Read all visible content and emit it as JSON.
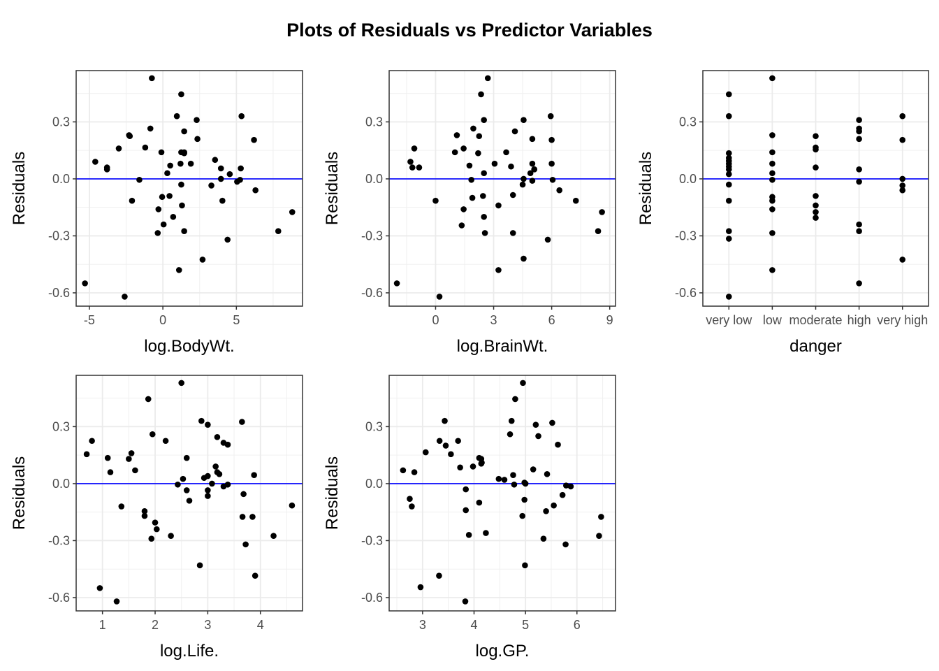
{
  "title": "Plots of Residuals vs Predictor Variables",
  "chart_data": [
    {
      "type": "scatter",
      "xlabel": "log.BodyWt.",
      "ylabel": "Residuals",
      "xlim": [
        -5.9,
        9.5
      ],
      "ylim": [
        -0.67,
        0.57
      ],
      "xticks": [
        -5,
        0,
        5
      ],
      "yticks": [
        -0.6,
        -0.3,
        0.0,
        0.3
      ],
      "ytick_labels": [
        "-0.6",
        "-0.3",
        "0.0",
        "0.3"
      ],
      "reference_line": 0,
      "grid": true,
      "x": [
        -0.75,
        1.25,
        2.3,
        5.35,
        0.95,
        -0.85,
        1.45,
        2.35,
        -2.3,
        -2.25,
        -3.0,
        6.2,
        -1.2,
        -0.1,
        1.25,
        1.45,
        1.2,
        1.45,
        -4.6,
        3.55,
        0.5,
        1.9,
        -3.8,
        -3.8,
        3.95,
        5.3,
        0.3,
        4.55,
        -1.6,
        3.95,
        5.25,
        5.05,
        1.25,
        3.3,
        6.3,
        -0.05,
        0.45,
        -2.1,
        4.05,
        1.3,
        -0.3,
        0.7,
        0.05,
        -0.35,
        1.45,
        7.85,
        8.8,
        4.4,
        2.7,
        1.1,
        -5.3,
        -2.6
      ],
      "y": [
        0.53,
        0.445,
        0.31,
        0.33,
        0.33,
        0.265,
        0.25,
        0.21,
        0.23,
        0.225,
        0.16,
        0.205,
        0.165,
        0.14,
        0.14,
        0.14,
        0.08,
        0.135,
        0.09,
        0.1,
        0.07,
        0.08,
        0.05,
        0.06,
        0.055,
        0.055,
        0.03,
        0.025,
        -0.005,
        0.0,
        -0.005,
        -0.015,
        -0.03,
        -0.035,
        -0.06,
        -0.095,
        -0.09,
        -0.115,
        -0.115,
        -0.14,
        -0.16,
        -0.2,
        -0.24,
        -0.285,
        -0.275,
        -0.275,
        -0.175,
        -0.32,
        -0.425,
        -0.48,
        -0.55,
        -0.62
      ],
      "series_color": "#000000",
      "line_color": "#0000ff"
    },
    {
      "type": "scatter",
      "xlabel": "log.BrainWt.",
      "ylabel": "Residuals",
      "xlim": [
        -2.4,
        9.3
      ],
      "ylim": [
        -0.67,
        0.57
      ],
      "xticks": [
        0,
        3,
        6,
        9
      ],
      "yticks": [
        -0.6,
        -0.3,
        0.0,
        0.3
      ],
      "ytick_labels": [
        "-0.6",
        "-0.3",
        "0.0",
        "0.3"
      ],
      "reference_line": 0,
      "grid": true,
      "x": [
        2.7,
        2.35,
        2.5,
        5.95,
        4.55,
        1.95,
        2.25,
        4.1,
        5.0,
        6.0,
        1.45,
        1.1,
        2.2,
        1.0,
        3.65,
        5.0,
        -1.1,
        -1.3,
        3.9,
        1.75,
        5.1,
        3.05,
        -1.2,
        -0.85,
        6.0,
        5.1,
        2.5,
        4.9,
        4.55,
        1.85,
        5.0,
        6.05,
        4.0,
        4.5,
        6.4,
        0.0,
        1.9,
        2.45,
        3.25,
        7.25,
        8.6,
        1.45,
        2.5,
        2.55,
        4.0,
        8.4,
        5.8,
        1.35,
        4.55,
        3.25,
        -2.0,
        0.2
      ],
      "y": [
        0.53,
        0.445,
        0.31,
        0.33,
        0.31,
        0.265,
        0.225,
        0.25,
        0.21,
        0.205,
        0.16,
        0.23,
        0.135,
        0.14,
        0.14,
        0.08,
        0.16,
        0.09,
        0.065,
        0.07,
        0.05,
        0.08,
        0.06,
        0.06,
        0.08,
        0.05,
        0.03,
        0.03,
        0.0,
        -0.005,
        -0.01,
        -0.005,
        -0.085,
        -0.03,
        -0.06,
        -0.115,
        -0.1,
        -0.09,
        -0.14,
        -0.115,
        -0.175,
        -0.16,
        -0.2,
        -0.285,
        -0.285,
        -0.275,
        -0.32,
        -0.245,
        -0.42,
        -0.48,
        -0.55,
        -0.62
      ],
      "series_color": "#000000",
      "line_color": "#0000ff"
    },
    {
      "type": "scatter",
      "xlabel": "danger",
      "ylabel": "Residuals",
      "categories": [
        "very low",
        "low",
        "moderate",
        "high",
        "very high"
      ],
      "ylim": [
        -0.67,
        0.57
      ],
      "yticks": [
        -0.6,
        -0.3,
        0.0,
        0.3
      ],
      "ytick_labels": [
        "-0.6",
        "-0.3",
        "0.0",
        "0.3"
      ],
      "reference_line": 0,
      "grid": true,
      "points": [
        {
          "category": "very low",
          "values": [
            0.445,
            0.33,
            0.135,
            0.11,
            0.095,
            0.08,
            0.065,
            0.05,
            0.025,
            -0.03,
            -0.115,
            -0.275,
            -0.315,
            -0.62
          ]
        },
        {
          "category": "low",
          "values": [
            0.53,
            0.23,
            0.14,
            0.08,
            0.03,
            -0.005,
            -0.095,
            -0.115,
            -0.16,
            -0.285,
            -0.48
          ]
        },
        {
          "category": "moderate",
          "values": [
            0.225,
            0.165,
            0.155,
            0.06,
            -0.09,
            -0.14,
            -0.175,
            -0.205
          ]
        },
        {
          "category": "high",
          "values": [
            0.31,
            0.265,
            0.25,
            0.21,
            0.05,
            -0.015,
            -0.24,
            -0.275,
            -0.55
          ]
        },
        {
          "category": "very high",
          "values": [
            0.33,
            0.205,
            0.0,
            -0.035,
            -0.06,
            -0.425
          ]
        }
      ],
      "series_color": "#000000",
      "line_color": "#0000ff"
    },
    {
      "type": "scatter",
      "xlabel": "log.Life.",
      "ylabel": "Residuals",
      "xlim": [
        0.5,
        4.8
      ],
      "ylim": [
        -0.67,
        0.57
      ],
      "xticks": [
        1,
        2,
        3,
        4
      ],
      "yticks": [
        -0.6,
        -0.3,
        0.0,
        0.3
      ],
      "ytick_labels": [
        "-0.6",
        "-0.3",
        "0.0",
        "0.3"
      ],
      "reference_line": 0,
      "grid": true,
      "x": [
        2.5,
        1.87,
        2.88,
        3.0,
        3.65,
        1.95,
        0.8,
        2.2,
        3.18,
        3.3,
        3.38,
        0.7,
        1.55,
        1.1,
        1.5,
        1.62,
        3.15,
        2.6,
        3.0,
        1.15,
        3.18,
        3.22,
        3.88,
        2.53,
        2.93,
        3.3,
        3.08,
        2.43,
        3.0,
        3.38,
        3.68,
        2.65,
        3.0,
        3.85,
        1.36,
        2.6,
        1.8,
        1.8,
        2.0,
        3.66,
        2.03,
        1.93,
        2.3,
        4.25,
        4.6,
        3.72,
        2.85,
        3.9,
        0.95,
        1.27
      ],
      "y": [
        0.53,
        0.445,
        0.33,
        0.31,
        0.325,
        0.26,
        0.225,
        0.225,
        0.245,
        0.215,
        0.205,
        0.155,
        0.16,
        0.135,
        0.13,
        0.07,
        0.09,
        0.135,
        0.04,
        0.06,
        0.06,
        0.05,
        0.045,
        0.025,
        0.03,
        -0.015,
        0.0,
        -0.005,
        -0.035,
        -0.005,
        -0.055,
        -0.09,
        -0.065,
        -0.175,
        -0.12,
        -0.035,
        -0.145,
        -0.17,
        -0.205,
        -0.175,
        -0.24,
        -0.29,
        -0.275,
        -0.275,
        -0.115,
        -0.32,
        -0.43,
        -0.485,
        -0.55,
        -0.62
      ],
      "series_color": "#000000",
      "line_color": "#0000ff"
    },
    {
      "type": "scatter",
      "xlabel": "log.GP.",
      "ylabel": "Residuals",
      "xlim": [
        2.35,
        6.75
      ],
      "ylim": [
        -0.67,
        0.57
      ],
      "xticks": [
        3,
        4,
        5,
        6
      ],
      "yticks": [
        -0.6,
        -0.3,
        0.0,
        0.3
      ],
      "ytick_labels": [
        "-0.6",
        "-0.3",
        "0.0",
        "0.3"
      ],
      "reference_line": 0,
      "grid": true,
      "x": [
        4.95,
        4.8,
        4.73,
        3.43,
        5.2,
        5.52,
        3.33,
        3.69,
        5.25,
        3.45,
        4.7,
        3.06,
        5.63,
        4.1,
        5.42,
        4.14,
        2.62,
        3.55,
        3.73,
        4.14,
        2.84,
        4.15,
        4.98,
        3.98,
        4.76,
        4.48,
        5.15,
        4.59,
        5.0,
        5.79,
        4.78,
        5.88,
        3.84,
        2.79,
        4.1,
        2.75,
        4.98,
        5.72,
        5.4,
        5.55,
        3.84,
        4.94,
        4.23,
        3.9,
        6.47,
        5.35,
        6.43,
        5.78,
        4.99,
        2.96,
        3.32,
        3.83
      ],
      "y": [
        0.53,
        0.445,
        0.33,
        0.33,
        0.31,
        0.32,
        0.225,
        0.225,
        0.25,
        0.2,
        0.26,
        0.165,
        0.205,
        0.135,
        0.05,
        0.13,
        0.07,
        0.155,
        0.085,
        0.105,
        0.06,
        0.11,
        0.005,
        0.09,
        0.045,
        0.025,
        0.075,
        0.02,
        0.0,
        -0.01,
        -0.005,
        -0.015,
        -0.03,
        -0.12,
        -0.1,
        -0.08,
        -0.085,
        -0.06,
        -0.145,
        -0.115,
        -0.14,
        -0.17,
        -0.26,
        -0.27,
        -0.175,
        -0.29,
        -0.275,
        -0.32,
        -0.43,
        -0.545,
        -0.485,
        -0.62
      ],
      "series_color": "#000000",
      "line_color": "#0000ff"
    }
  ]
}
